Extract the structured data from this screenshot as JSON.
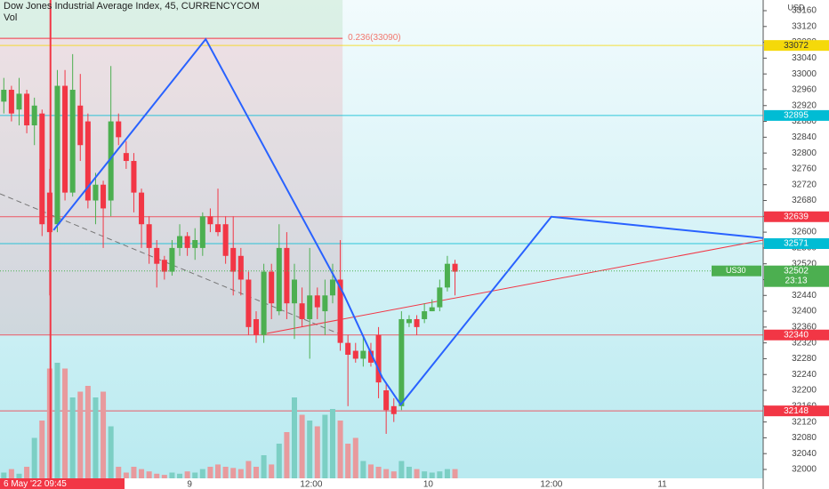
{
  "chart_data": {
    "type": "candlestick",
    "title": "Dow Jones Industrial Average Index, 45, CURRENCYCOM",
    "volume_label": "Vol",
    "currency": "USD",
    "x": [
      0,
      1,
      2,
      3,
      4,
      5,
      6,
      7,
      8,
      9,
      10,
      11,
      12,
      13,
      14,
      15,
      16,
      17,
      18,
      19,
      20,
      21,
      22,
      23,
      24,
      25,
      26,
      27,
      28,
      29,
      30,
      31,
      32,
      33,
      34,
      35,
      36,
      37,
      38,
      39,
      40,
      41,
      42,
      43,
      44,
      45,
      46,
      47,
      48,
      49,
      50,
      51,
      52,
      53,
      54,
      55,
      56,
      57,
      58,
      59
    ],
    "open": [
      32930,
      32960,
      32910,
      32950,
      32870,
      32900,
      32700,
      32620,
      32970,
      32700,
      32920,
      32880,
      32680,
      32720,
      32680,
      32880,
      32800,
      32780,
      32700,
      32620,
      32560,
      32530,
      32500,
      32560,
      32590,
      32560,
      32560,
      32640,
      32620,
      32620,
      32560,
      32540,
      32480,
      32380,
      32340,
      32500,
      32400,
      32560,
      32420,
      32420,
      32380,
      32440,
      32400,
      32440,
      32480,
      32320,
      32300,
      32280,
      32300,
      32340,
      32200,
      32160,
      32160,
      32370,
      32380,
      32380,
      32400,
      32410,
      32460,
      32520
    ],
    "high": [
      32990,
      32970,
      32990,
      32960,
      32940,
      32910,
      32760,
      33010,
      33010,
      33050,
      33000,
      32900,
      32750,
      32730,
      33020,
      32900,
      32830,
      32800,
      32710,
      32640,
      32580,
      32540,
      32580,
      32620,
      32600,
      32610,
      32650,
      32660,
      32710,
      32640,
      32640,
      32560,
      32500,
      32400,
      32520,
      32520,
      32620,
      32600,
      32520,
      32460,
      32560,
      32460,
      32480,
      32520,
      32580,
      32340,
      32320,
      32340,
      32320,
      32360,
      32220,
      32180,
      32400,
      32390,
      32390,
      32420,
      32430,
      32480,
      32540,
      32530
    ],
    "low": [
      32900,
      32880,
      32870,
      32850,
      32820,
      32590,
      32440,
      32600,
      32680,
      32690,
      32780,
      32660,
      32620,
      32560,
      32640,
      32820,
      32760,
      32650,
      32560,
      32520,
      32460,
      32480,
      32490,
      32540,
      32540,
      32530,
      32540,
      32600,
      32590,
      32520,
      32440,
      32440,
      32340,
      32320,
      32320,
      32380,
      32390,
      32380,
      32330,
      32360,
      32280,
      32380,
      32340,
      32420,
      32300,
      32160,
      32270,
      32260,
      32260,
      32180,
      32090,
      32120,
      32150,
      32360,
      32340,
      32370,
      32400,
      32400,
      32450,
      32440
    ],
    "close": [
      32960,
      32900,
      32950,
      32870,
      32920,
      32620,
      32600,
      32970,
      32700,
      32960,
      32820,
      32680,
      32720,
      32660,
      32880,
      32840,
      32780,
      32700,
      32620,
      32560,
      32520,
      32500,
      32560,
      32590,
      32560,
      32580,
      32640,
      32620,
      32600,
      32540,
      32500,
      32480,
      32360,
      32340,
      32500,
      32420,
      32560,
      32420,
      32480,
      32380,
      32440,
      32410,
      32440,
      32480,
      32320,
      32290,
      32280,
      32300,
      32270,
      32220,
      32150,
      32140,
      32380,
      32380,
      32360,
      32400,
      32410,
      32460,
      32520,
      32500
    ],
    "volume": [
      5,
      8,
      4,
      10,
      35,
      50,
      95,
      100,
      95,
      70,
      75,
      80,
      70,
      75,
      45,
      10,
      5,
      10,
      8,
      6,
      4,
      3,
      5,
      4,
      6,
      5,
      8,
      10,
      12,
      10,
      9,
      8,
      15,
      10,
      20,
      12,
      30,
      40,
      70,
      55,
      50,
      45,
      55,
      60,
      50,
      30,
      35,
      15,
      12,
      10,
      8,
      6,
      15,
      10,
      8,
      6,
      5,
      6,
      8,
      8
    ],
    "up_color": "#4caf50",
    "down_color": "#f23645",
    "volume_up_color": "#7ccfc4",
    "volume_down_color": "#e89a9d",
    "xlim": [
      -0.5,
      99.3
    ],
    "ylim": [
      32000,
      33160
    ],
    "yticks": [
      32000,
      32040,
      32080,
      32120,
      32160,
      32200,
      32240,
      32280,
      32320,
      32360,
      32400,
      32440,
      32480,
      32520,
      32560,
      32600,
      32640,
      32680,
      32720,
      32760,
      32800,
      32840,
      32880,
      32920,
      32960,
      33000,
      33040,
      33080,
      33120,
      33160
    ],
    "xticks": [
      {
        "value": 24.3,
        "label": "9"
      },
      {
        "value": 40.2,
        "label": "12:00"
      },
      {
        "value": 55.5,
        "label": "10"
      },
      {
        "value": 71.6,
        "label": "12:00"
      },
      {
        "value": 86.1,
        "label": "11"
      }
    ],
    "marker": {
      "x": 6.1,
      "label": "6 May '22   09:45",
      "color": "#f23645"
    },
    "fib_box": {
      "x": [
        -0.5,
        44.3
      ],
      "top": 33090,
      "bottom": 32340,
      "label": "0.236(33090)"
    },
    "levels": [
      {
        "price": 33072,
        "color": "#f5d90a"
      },
      {
        "price": 32895,
        "color": "#00bcd4"
      },
      {
        "price": 32639,
        "color": "#f23645"
      },
      {
        "price": 32571,
        "color": "#00bcd4"
      },
      {
        "price": 32340,
        "color": "#f23645"
      },
      {
        "price": 32148,
        "color": "#f23645"
      }
    ],
    "current": {
      "price": 32502,
      "symbol": "US30",
      "countdown": "23:13",
      "color": "#4caf50"
    },
    "zigzag": {
      "x": [
        6.5,
        26.4,
        44.4,
        49.5,
        51.9,
        71.6,
        99.3
      ],
      "y": [
        32605,
        33088,
        32445,
        32232,
        32164,
        32639,
        32585
      ],
      "color": "#2962ff"
    },
    "trend_dashed": {
      "x": [
        -0.5,
        43.7
      ],
      "y": [
        32697,
        32344
      ],
      "color": "#777777"
    },
    "trend_red": {
      "x": [
        34.4,
        99.3
      ],
      "y": [
        32344,
        32580
      ],
      "color": "#f23645"
    }
  }
}
